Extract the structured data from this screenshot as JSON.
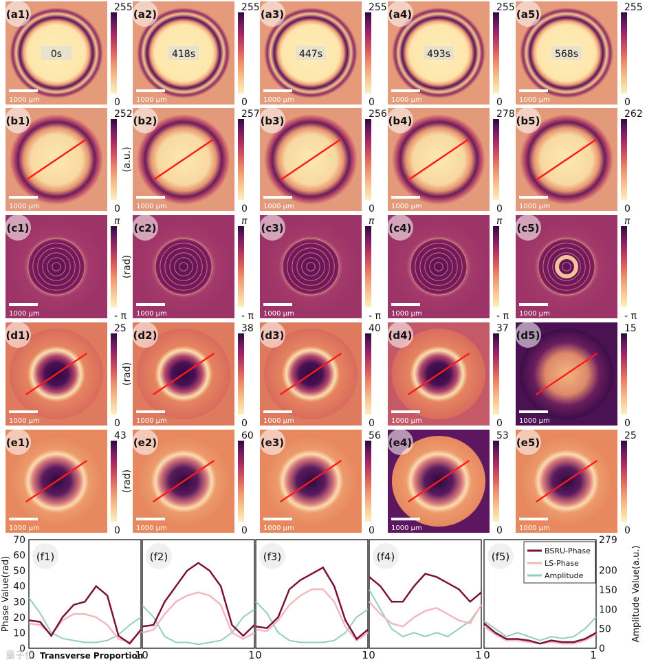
{
  "colors": {
    "bsru": "#7a0f3e",
    "ls": "#f2b8be",
    "amp": "#93cfb6",
    "laser": "#ff1a1a",
    "cmap": [
      "#fdf0bd",
      "#f7c18d",
      "#ee8e6a",
      "#d6565d",
      "#a72b62",
      "#6d1860",
      "#2c0a3d"
    ]
  },
  "grid": {
    "rows": [
      {
        "key": "a",
        "labels": [
          "(a1)",
          "(a2)",
          "(a3)",
          "(a4)",
          "(a5)"
        ],
        "cbar_top": [
          "255",
          "255",
          "255",
          "255",
          "255"
        ],
        "cbar_bottom": "0",
        "unit": "",
        "line": false
      },
      {
        "key": "b",
        "labels": [
          "(b1)",
          "(b2)",
          "(b3)",
          "(b4)",
          "(b5)"
        ],
        "cbar_top": [
          "252",
          "257",
          "256",
          "278",
          "262"
        ],
        "cbar_bottom": "0",
        "unit": "(a.u.)",
        "line": true
      },
      {
        "key": "c",
        "labels": [
          "(c1)",
          "(c2)",
          "(c3)",
          "(c4)",
          "(c5)"
        ],
        "cbar_top": [
          "π",
          "π",
          "π",
          "π",
          "π"
        ],
        "cbar_bottom": "- π",
        "unit": "(rad)",
        "line": false
      },
      {
        "key": "d",
        "labels": [
          "(d1)",
          "(d2)",
          "(d3)",
          "(d4)",
          "(d5)"
        ],
        "cbar_top": [
          "25",
          "38",
          "40",
          "37",
          "15"
        ],
        "cbar_bottom": "0",
        "unit": "(rad)",
        "line": true
      },
      {
        "key": "e",
        "labels": [
          "(e1)",
          "(e2)",
          "(e3)",
          "(e4)",
          "(e5)"
        ],
        "cbar_top": [
          "43",
          "60",
          "56",
          "53",
          "25"
        ],
        "cbar_bottom": "0",
        "unit": "(rad)",
        "line": true
      }
    ],
    "times": [
      "0s",
      "418s",
      "447s",
      "493s",
      "568s"
    ],
    "scalebar": "1000 μm"
  },
  "chart_data": {
    "type": "line",
    "panels": [
      "(f1)",
      "(f2)",
      "(f3)",
      "(f4)",
      "(f5)"
    ],
    "xlabel": "Transverse Proportion",
    "ylabel_left": "Phase Value(rad)",
    "ylabel_right": "Amplitude Value(a.u.)",
    "xlim": [
      0,
      1
    ],
    "x_ticks": [
      "0",
      "1"
    ],
    "ylim_left": [
      0,
      70
    ],
    "y_ticks_left": [
      "70",
      "60",
      "50",
      "40",
      "30",
      "20",
      "10",
      "0"
    ],
    "ylim_right": [
      0,
      279
    ],
    "y_ticks_right": [
      "279",
      "200",
      "150",
      "100",
      "50",
      "0"
    ],
    "legend": [
      "BSRU-Phase",
      "LS-Phase",
      "Amplitude"
    ],
    "legend_position": "top-right",
    "x": [
      0,
      0.1,
      0.2,
      0.3,
      0.4,
      0.5,
      0.6,
      0.7,
      0.8,
      0.9,
      1
    ],
    "series": [
      {
        "panel": "(f1)",
        "bsru": [
          18,
          17,
          8,
          20,
          28,
          30,
          40,
          34,
          8,
          3,
          12
        ],
        "ls": [
          16,
          15,
          9,
          18,
          22,
          22,
          20,
          15,
          6,
          4,
          11
        ],
        "amp": [
          130,
          90,
          40,
          25,
          20,
          15,
          15,
          20,
          35,
          60,
          80
        ]
      },
      {
        "panel": "(f2)",
        "bsru": [
          14,
          15,
          30,
          40,
          50,
          55,
          50,
          40,
          15,
          8,
          15
        ],
        "ls": [
          10,
          12,
          22,
          30,
          34,
          36,
          34,
          28,
          10,
          6,
          10
        ],
        "amp": [
          110,
          80,
          30,
          15,
          15,
          10,
          15,
          20,
          40,
          80,
          100
        ]
      },
      {
        "panel": "(f3)",
        "bsru": [
          14,
          13,
          20,
          38,
          44,
          48,
          52,
          40,
          18,
          6,
          12
        ],
        "ls": [
          12,
          11,
          18,
          28,
          34,
          38,
          38,
          30,
          14,
          5,
          10
        ],
        "amp": [
          120,
          90,
          40,
          20,
          15,
          15,
          15,
          20,
          40,
          80,
          100
        ]
      },
      {
        "panel": "(f4)",
        "bsru": [
          46,
          40,
          30,
          30,
          40,
          48,
          46,
          42,
          38,
          30,
          36
        ],
        "ls": [
          30,
          22,
          16,
          14,
          20,
          24,
          26,
          22,
          18,
          16,
          28
        ],
        "amp": [
          150,
          100,
          50,
          30,
          40,
          30,
          40,
          30,
          50,
          70,
          110
        ]
      },
      {
        "panel": "(f5)",
        "bsru": [
          16,
          10,
          6,
          6,
          5,
          3,
          5,
          4,
          4,
          6,
          10
        ],
        "ls": [
          14,
          9,
          5,
          5,
          4,
          3,
          4,
          3,
          3,
          5,
          9
        ],
        "amp": [
          70,
          50,
          30,
          40,
          30,
          20,
          30,
          25,
          30,
          50,
          80
        ]
      }
    ]
  },
  "watermark": "量子位"
}
